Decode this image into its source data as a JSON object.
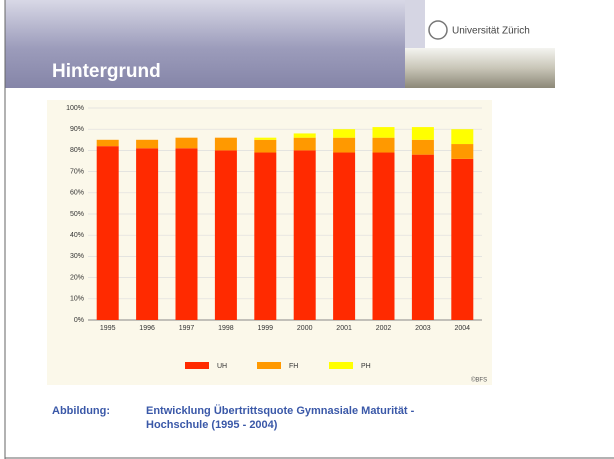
{
  "header": {
    "title": "Hintergrund",
    "institution": "Universität Zürich"
  },
  "chart_data": {
    "type": "stacked_bar",
    "categories": [
      "1995",
      "1996",
      "1997",
      "1998",
      "1999",
      "2000",
      "2001",
      "2002",
      "2003",
      "2004"
    ],
    "series": [
      {
        "name": "UH",
        "color": "#ff2a00",
        "values": [
          82,
          81,
          81,
          80,
          79,
          80,
          79,
          79,
          78,
          76
        ]
      },
      {
        "name": "FH",
        "color": "#ff9900",
        "values": [
          3,
          4,
          5,
          6,
          6,
          6,
          7,
          7,
          7,
          7
        ]
      },
      {
        "name": "PH",
        "color": "#ffff00",
        "values": [
          0,
          0,
          0,
          0,
          1,
          2,
          4,
          5,
          6,
          7
        ]
      }
    ],
    "ylim": [
      0,
      100
    ],
    "yticks": [
      {
        "value": 0,
        "label": "0%"
      },
      {
        "value": 10,
        "label": "10%"
      },
      {
        "value": 20,
        "label": "20%"
      },
      {
        "value": 30,
        "label": "30%"
      },
      {
        "value": 40,
        "label": "40%"
      },
      {
        "value": 50,
        "label": "50%"
      },
      {
        "value": 60,
        "label": "60%"
      },
      {
        "value": 70,
        "label": "70%"
      },
      {
        "value": 80,
        "label": "80%"
      },
      {
        "value": 90,
        "label": "90%"
      },
      {
        "value": 100,
        "label": "100%"
      }
    ],
    "grid": true,
    "source": "©BFS"
  },
  "caption": {
    "label": "Abbildung:",
    "line1": "Entwicklung Übertrittsquote Gymnasiale Maturität -",
    "line2": "Hochschule (1995 - 2004)"
  }
}
